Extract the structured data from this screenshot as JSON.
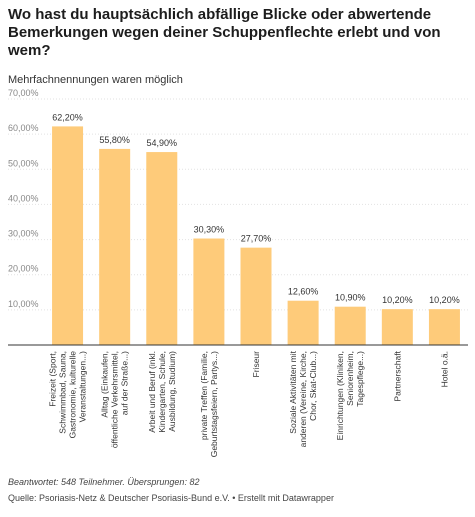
{
  "chart_data": {
    "type": "bar",
    "title": "Wo hast du hauptsächlich abfällige Blicke oder abwertende Bemerkungen wegen deiner Schuppenflechte erlebt und von wem?",
    "subtitle": "Mehrfachnennungen waren möglich",
    "ylim": [
      0,
      70
    ],
    "yticks": [
      "0,00%",
      "10,00%",
      "20,00%",
      "30,00%",
      "40,00%",
      "50,00%",
      "60,00%",
      "70,00%"
    ],
    "grid": true,
    "bar_color": "#fecb7a",
    "categories": [
      [
        "Freizeit (Sport,",
        "Schwimmbad, Sauna,",
        "Gastronomie, kulturelle",
        "Veranstaltungen...)"
      ],
      [
        "Alltag (Einkaufen,",
        "öffentliche Verkehrsmittel,",
        "auf der Straße...)"
      ],
      [
        "Arbeit und Beruf (inkl.",
        "Kindergarten, Schule,",
        "Ausbildung, Studium)"
      ],
      [
        "private Treffen (Familie,",
        "Geburtstagsfeiern, Partys...)"
      ],
      [
        "Friseur"
      ],
      [
        "Soziale Aktivitäten mit",
        "anderen (Vereine, Kirche,",
        "Chor, Skat-Club...)"
      ],
      [
        "Einrichtungen (Kliniken,",
        "Seniorenheim,",
        "Tagespflege...)"
      ],
      [
        "Partnerschaft"
      ],
      [
        "Hotel o.ä."
      ]
    ],
    "values": [
      62.2,
      55.8,
      54.9,
      30.3,
      27.7,
      12.6,
      10.9,
      10.2,
      10.2
    ],
    "value_labels": [
      "62,20%",
      "55,80%",
      "54,90%",
      "30,30%",
      "27,70%",
      "12,60%",
      "10,90%",
      "10,20%",
      "10,20%"
    ]
  },
  "footer": {
    "note": "Beantwortet: 548 Teilnehmer. Übersprungen: 82",
    "source": "Quelle: Psoriasis-Netz & Deutscher Psoriasis-Bund e.V. • Erstellt mit Datawrapper"
  }
}
